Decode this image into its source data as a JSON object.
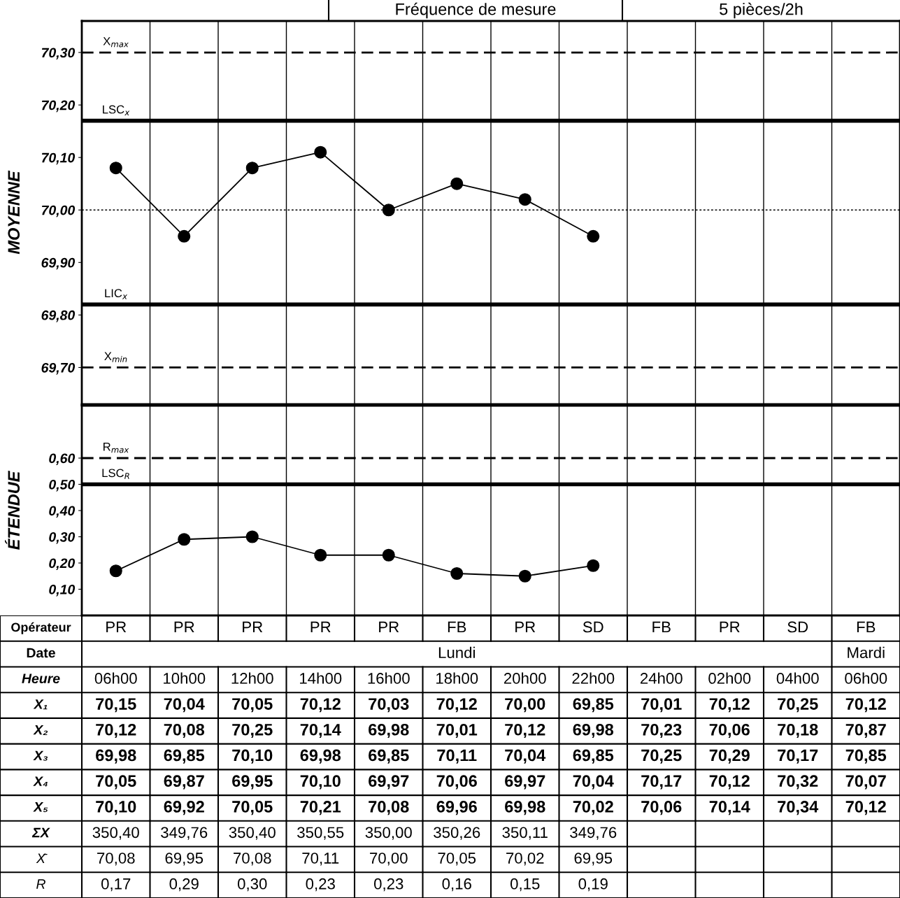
{
  "chart_data": [
    {
      "type": "line",
      "ylabel": "MOYENNE",
      "categories": [
        null,
        null,
        null,
        null,
        null,
        null,
        null,
        null,
        null,
        null,
        null,
        null
      ],
      "series": [
        {
          "color": "#000000",
          "values": [
            70.08,
            69.95,
            70.08,
            70.11,
            70.0,
            70.05,
            70.02,
            69.95,
            null,
            null,
            null,
            null
          ]
        }
      ],
      "ylim": [
        69.63,
        70.36
      ],
      "yticks": [
        {
          "value": 69.7,
          "label": "69,70"
        },
        {
          "value": 69.8,
          "label": "69,80"
        },
        {
          "value": 69.9,
          "label": "69,90"
        },
        {
          "value": 70.0,
          "label": "70,00"
        },
        {
          "value": 70.1,
          "label": "70,10"
        },
        {
          "value": 70.2,
          "label": "70,20"
        },
        {
          "value": 70.3,
          "label": "70,30"
        }
      ],
      "ref_lines": [
        {
          "axis": "y",
          "value": 70.3,
          "label": "X$_{max}$",
          "color": "#000000",
          "line_style": "dashed"
        },
        {
          "axis": "y",
          "value": 70.17,
          "label": "LSC$_{x}$",
          "color": "#000000",
          "line_style": "solid"
        },
        {
          "axis": "y",
          "value": 70.0,
          "color": "#000000",
          "line_style": "dotted"
        },
        {
          "axis": "y",
          "value": 69.82,
          "label": "LIC$_{x}$",
          "color": "#000000",
          "line_style": "solid"
        },
        {
          "axis": "y",
          "value": 69.7,
          "label": "X$_{min}$",
          "color": "#000000",
          "line_style": "dashed"
        }
      ],
      "marker": "circle",
      "line_style": "solid",
      "tick_labels": "y",
      "annotations": [
        "Fréquence de mesure",
        "5 pièces/2h"
      ]
    },
    {
      "type": "line",
      "ylabel": "ÉTENDUE",
      "categories": [
        null,
        null,
        null,
        null,
        null,
        null,
        null,
        null,
        null,
        null,
        null,
        null
      ],
      "series": [
        {
          "color": "#000000",
          "values": [
            0.17,
            0.29,
            0.3,
            0.23,
            0.23,
            0.16,
            0.15,
            0.19,
            null,
            null,
            null,
            null
          ]
        }
      ],
      "ylim": [
        0.0,
        0.8
      ],
      "yticks": [
        {
          "value": 0.1,
          "label": "0,10"
        },
        {
          "value": 0.2,
          "label": "0,20"
        },
        {
          "value": 0.3,
          "label": "0,30"
        },
        {
          "value": 0.4,
          "label": "0,40"
        },
        {
          "value": 0.5,
          "label": "0,50"
        },
        {
          "value": 0.6,
          "label": "0,60"
        }
      ],
      "ref_lines": [
        {
          "axis": "y",
          "value": 0.6,
          "label": "R$_{max}$",
          "color": "#000000",
          "line_style": "dashed"
        },
        {
          "axis": "y",
          "value": 0.5,
          "label": "LSC$_{R}$",
          "color": "#000000",
          "line_style": "solid"
        }
      ],
      "marker": "circle",
      "line_style": "solid",
      "tick_labels": "y"
    },
    {
      "type": "other",
      "xlabel": "Heure",
      "categories": [
        "06h00",
        "10h00",
        "12h00",
        "14h00",
        "16h00",
        "18h00",
        "20h00",
        "22h00",
        "24h00",
        "02h00",
        "04h00",
        "06h00"
      ],
      "annotations": [
        "Opérateur",
        "PR",
        "PR",
        "PR",
        "PR",
        "PR",
        "FB",
        "PR",
        "SD",
        "FB",
        "PR",
        "SD",
        "FB",
        "Date",
        "Lundi",
        "Mardi"
      ],
      "series": [
        {
          "name": "X₁",
          "values": [
            70.15,
            70.04,
            70.05,
            70.12,
            70.03,
            70.12,
            70.0,
            69.85,
            70.01,
            70.12,
            70.25,
            70.12
          ],
          "value_labels": [
            "70,15",
            "70,04",
            "70,05",
            "70,12",
            "70,03",
            "70,12",
            "70,00",
            "69,85",
            "70,01",
            "70,12",
            "70,25",
            "70,12"
          ]
        },
        {
          "name": "X₂",
          "values": [
            70.12,
            70.08,
            70.25,
            70.14,
            69.98,
            70.01,
            70.12,
            69.98,
            70.23,
            70.06,
            70.18,
            70.87
          ],
          "value_labels": [
            "70,12",
            "70,08",
            "70,25",
            "70,14",
            "69,98",
            "70,01",
            "70,12",
            "69,98",
            "70,23",
            "70,06",
            "70,18",
            "70,87"
          ]
        },
        {
          "name": "X₃",
          "values": [
            69.98,
            69.85,
            70.1,
            69.98,
            69.85,
            70.11,
            70.04,
            69.85,
            70.25,
            70.29,
            70.17,
            70.85
          ],
          "value_labels": [
            "69,98",
            "69,85",
            "70,10",
            "69,98",
            "69,85",
            "70,11",
            "70,04",
            "69,85",
            "70,25",
            "70,29",
            "70,17",
            "70,85"
          ]
        },
        {
          "name": "X₄",
          "values": [
            70.05,
            69.87,
            69.95,
            70.1,
            69.97,
            70.06,
            69.97,
            70.04,
            70.17,
            70.12,
            70.32,
            70.07
          ],
          "value_labels": [
            "70,05",
            "69,87",
            "69,95",
            "70,10",
            "69,97",
            "70,06",
            "69,97",
            "70,04",
            "70,17",
            "70,12",
            "70,32",
            "70,07"
          ]
        },
        {
          "name": "X₅",
          "values": [
            70.1,
            69.92,
            70.05,
            70.21,
            70.08,
            69.96,
            69.98,
            70.02,
            70.06,
            70.14,
            70.34,
            70.12
          ],
          "value_labels": [
            "70,10",
            "69,92",
            "70,05",
            "70,21",
            "70,08",
            "69,96",
            "69,98",
            "70,02",
            "70,06",
            "70,14",
            "70,34",
            "70,12"
          ]
        },
        {
          "name": "ΣX",
          "values": [
            350.4,
            349.76,
            350.4,
            350.55,
            350.0,
            350.26,
            350.11,
            349.76,
            null,
            null,
            null,
            null
          ],
          "value_labels": [
            "350,40",
            "349,76",
            "350,40",
            "350,55",
            "350,00",
            "350,26",
            "350,11",
            "349,76",
            null,
            null,
            null,
            null
          ]
        },
        {
          "name": "X̄",
          "values": [
            70.08,
            69.95,
            70.08,
            70.11,
            70.0,
            70.05,
            70.02,
            69.95,
            null,
            null,
            null,
            null
          ],
          "value_labels": [
            "70,08",
            "69,95",
            "70,08",
            "70,11",
            "70,00",
            "70,05",
            "70,02",
            "69,95",
            null,
            null,
            null,
            null
          ]
        },
        {
          "name": "R",
          "values": [
            0.17,
            0.29,
            0.3,
            0.23,
            0.23,
            0.16,
            0.15,
            0.19,
            null,
            null,
            null,
            null
          ],
          "value_labels": [
            "0,17",
            "0,29",
            "0,30",
            "0,23",
            "0,23",
            "0,16",
            "0,15",
            "0,19",
            null,
            null,
            null,
            null
          ]
        }
      ]
    }
  ]
}
